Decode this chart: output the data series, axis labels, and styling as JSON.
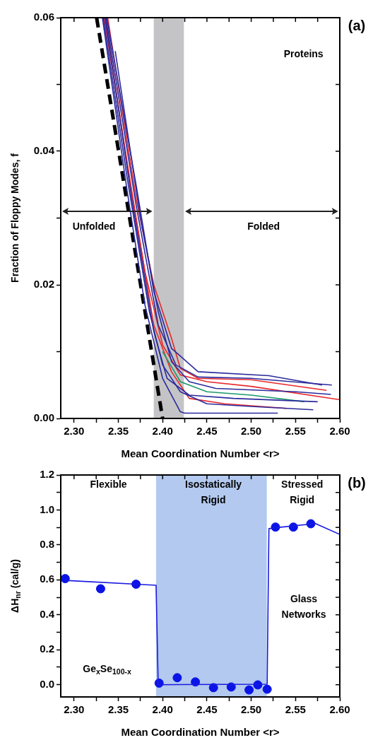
{
  "chart_data": [
    {
      "type": "line",
      "annotations": [
        "(a)",
        "Proteins",
        {
          "text": "Unfolded",
          "x": 2.39,
          "y": 0.031
        },
        "Folded"
      ],
      "xlabel": "Mean Coordination Number <r>",
      "ylabel": "Fraction of Floppy Modes, f",
      "xlim": [
        2.285,
        2.6
      ],
      "ylim": [
        0,
        0.06
      ],
      "xticks": [
        {
          "value": 2.3,
          "label": "2.30"
        },
        {
          "value": 2.325,
          "label": null
        },
        {
          "value": 2.35,
          "label": "2.35"
        },
        {
          "value": 2.375,
          "label": null
        },
        {
          "value": 2.4,
          "label": "2.40"
        },
        {
          "value": 2.425,
          "label": null
        },
        {
          "value": 2.45,
          "label": "2.45"
        },
        {
          "value": 2.475,
          "label": null
        },
        {
          "value": 2.5,
          "label": "2.50"
        },
        {
          "value": 2.525,
          "label": null
        },
        {
          "value": 2.55,
          "label": "2.55"
        },
        {
          "value": 2.575,
          "label": null
        },
        {
          "value": 2.6,
          "label": "2.60"
        }
      ],
      "yticks": [
        {
          "value": 0,
          "label": "0.00"
        },
        {
          "value": 0.01,
          "label": null
        },
        0.02,
        {
          "value": 0.03,
          "label": null
        },
        0.04,
        {
          "value": 0.05,
          "label": null
        },
        0.06
      ],
      "grid": false,
      "bands": [
        {
          "axis": "x",
          "from": 2.39,
          "to": 2.424,
          "color": "#c4c4c6"
        }
      ],
      "series": [
        {
          "color": "#2b2b9c",
          "x": [
            2.332,
            2.36,
            2.38,
            2.4,
            2.42,
            2.425,
            2.53
          ],
          "values": [
            0.06,
            0.034,
            0.017,
            0.006,
            0.001,
            0.0008,
            0.0008
          ]
        },
        {
          "color": "#2b2b9c",
          "x": [
            2.333,
            2.36,
            2.385,
            2.4,
            2.42,
            2.45,
            2.5,
            2.57
          ],
          "values": [
            0.06,
            0.036,
            0.016,
            0.008,
            0.004,
            0.0022,
            0.0018,
            0.0013
          ]
        },
        {
          "color": "#2b2b9c",
          "x": [
            2.335,
            2.365,
            2.39,
            2.405,
            2.43,
            2.48,
            2.575
          ],
          "values": [
            0.06,
            0.033,
            0.013,
            0.006,
            0.0035,
            0.003,
            0.0025
          ]
        },
        {
          "color": "#2b2b9c",
          "x": [
            2.336,
            2.37,
            2.395,
            2.415,
            2.44,
            2.5,
            2.591
          ],
          "values": [
            0.06,
            0.032,
            0.014,
            0.008,
            0.0062,
            0.006,
            0.005
          ]
        },
        {
          "color": "#2b2b9c",
          "x": [
            2.3465,
            2.375,
            2.395,
            2.41,
            2.43,
            2.46,
            2.55,
            2.59
          ],
          "values": [
            0.055,
            0.03,
            0.016,
            0.0085,
            0.0055,
            0.0045,
            0.004,
            0.0036
          ]
        },
        {
          "color": "#2b2b9c",
          "x": [
            2.337,
            2.37,
            2.39,
            2.41,
            2.44,
            2.52,
            2.58
          ],
          "values": [
            0.06,
            0.035,
            0.019,
            0.0105,
            0.007,
            0.0064,
            0.005
          ]
        },
        {
          "color": "#1a9a6a",
          "x": [
            2.4,
            2.42,
            2.45,
            2.5,
            2.56
          ],
          "values": [
            0.01,
            0.0055,
            0.004,
            0.0035,
            0.0025
          ]
        },
        {
          "color": "#e8282b",
          "x": [
            2.335,
            2.36,
            2.38,
            2.4,
            2.42,
            2.45,
            2.5,
            2.6
          ],
          "values": [
            0.06,
            0.038,
            0.022,
            0.011,
            0.0065,
            0.0055,
            0.0048,
            0.0028
          ]
        },
        {
          "color": "#e8282b",
          "x": [
            2.334,
            2.37,
            2.39,
            2.41,
            2.43,
            2.47,
            2.54
          ],
          "values": [
            0.06,
            0.03,
            0.014,
            0.007,
            0.003,
            0.0022,
            0.0015
          ]
        },
        {
          "color": "#e8282b",
          "x": [
            2.338,
            2.37,
            2.39,
            2.41,
            2.42,
            2.44,
            2.5,
            2.585
          ],
          "values": [
            0.06,
            0.033,
            0.02,
            0.012,
            0.0075,
            0.006,
            0.0058,
            0.0042
          ]
        },
        {
          "color": "#000000",
          "line_style": "dashed",
          "x": [
            2.3255,
            2.4
          ],
          "values": [
            0.06,
            0
          ]
        }
      ]
    },
    {
      "type": "scatter",
      "annotations": [
        "(b)",
        "Flexible",
        "Isostatically Rigid",
        "Stressed Rigid",
        "Glass Networks",
        "Ge$_{x}$Se$_{100-x}$"
      ],
      "xlabel": "Mean Coordination Number <r>",
      "ylabel": "ΔH$_{nr}$ (cal/g)",
      "xlim": [
        2.285,
        2.6
      ],
      "ylim": [
        -0.07,
        1.2
      ],
      "xticks": [
        {
          "value": 2.3,
          "label": "2.30"
        },
        {
          "value": 2.325,
          "label": null
        },
        {
          "value": 2.35,
          "label": "2.35"
        },
        {
          "value": 2.375,
          "label": null
        },
        {
          "value": 2.4,
          "label": "2.40"
        },
        {
          "value": 2.425,
          "label": null
        },
        {
          "value": 2.45,
          "label": "2.45"
        },
        {
          "value": 2.475,
          "label": null
        },
        {
          "value": 2.5,
          "label": "2.50"
        },
        {
          "value": 2.525,
          "label": null
        },
        {
          "value": 2.55,
          "label": "2.55"
        },
        {
          "value": 2.575,
          "label": null
        },
        {
          "value": 2.6,
          "label": "2.60"
        }
      ],
      "yticks": [
        {
          "value": 0,
          "label": "0.0"
        },
        {
          "value": 0.1,
          "label": null
        },
        0.2,
        {
          "value": 0.3,
          "label": null
        },
        0.4,
        {
          "value": 0.5,
          "label": null
        },
        0.6,
        {
          "value": 0.7,
          "label": null
        },
        0.8,
        {
          "value": 0.9,
          "label": null
        },
        {
          "value": 1,
          "label": "1.0"
        },
        {
          "value": 1.1,
          "label": null
        },
        1.2
      ],
      "grid": false,
      "bands": [
        {
          "axis": "x",
          "from": 2.3926,
          "to": 2.5176,
          "color": "#b3c9ef"
        }
      ],
      "series": [
        {
          "type": "line",
          "color": "#1a1ae0",
          "x": [
            2.29,
            2.3926,
            2.395,
            2.518,
            2.52,
            2.5274,
            2.5726,
            2.6
          ],
          "values": [
            0.597,
            0.569,
            0,
            0.003,
            0.893,
            0.898,
            0.922,
            0.86
          ]
        },
        {
          "color": "#0a14e6",
          "marker": "circle",
          "x": [
            2.29,
            2.33,
            2.37,
            2.396,
            2.4165,
            2.437,
            2.4574,
            2.4774,
            2.4976,
            2.5074,
            2.518,
            2.5274,
            2.5476,
            2.5673
          ],
          "values": [
            0.607,
            0.549,
            0.575,
            0.009,
            0.04,
            0.016,
            -0.017,
            -0.013,
            -0.03,
            -0.001,
            -0.026,
            0.902,
            0.902,
            0.921
          ]
        }
      ]
    }
  ]
}
